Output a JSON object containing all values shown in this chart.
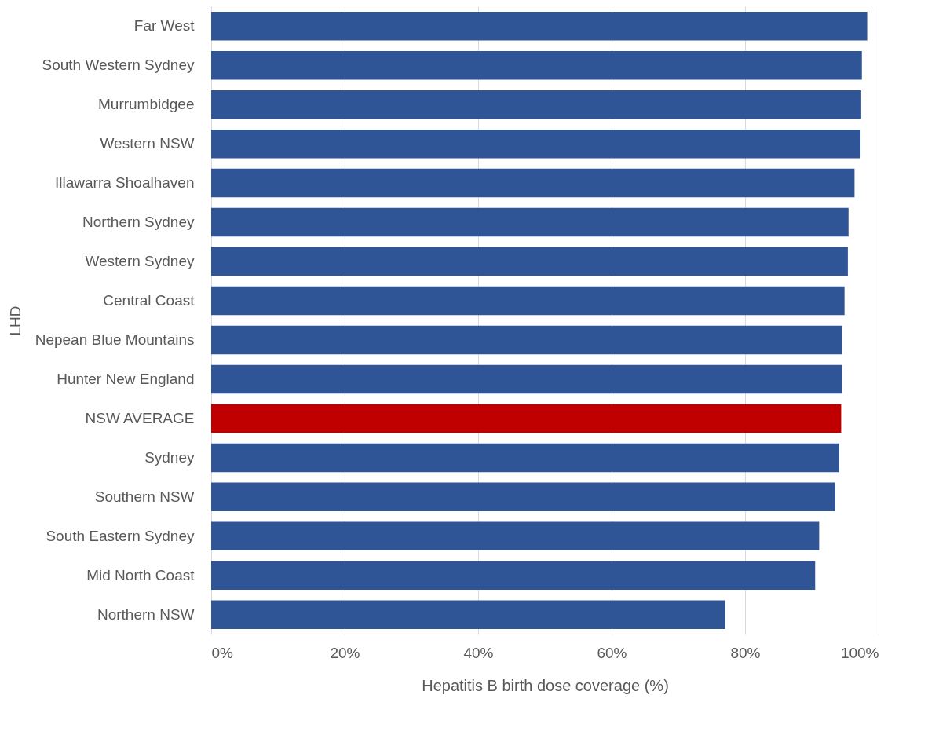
{
  "chart_data": {
    "type": "bar",
    "orientation": "horizontal",
    "xlabel": "Hepatitis B birth dose coverage (%)",
    "ylabel": "LHD",
    "categories": [
      "Far West",
      "South Western Sydney",
      "Murrumbidgee",
      "Western NSW",
      "Illawarra Shoalhaven",
      "Northern Sydney",
      "Western Sydney",
      "Central Coast",
      "Nepean Blue Mountains",
      "Hunter New England",
      "NSW AVERAGE",
      "Sydney",
      "Southern NSW",
      "South Eastern Sydney",
      "Mid North Coast",
      "Northern NSW"
    ],
    "values": [
      98.3,
      97.5,
      97.4,
      97.3,
      96.4,
      95.5,
      95.4,
      94.9,
      94.5,
      94.5,
      94.4,
      94.1,
      93.5,
      91.1,
      90.5,
      77.0
    ],
    "colors": [
      "#2f5597",
      "#2f5597",
      "#2f5597",
      "#2f5597",
      "#2f5597",
      "#2f5597",
      "#2f5597",
      "#2f5597",
      "#2f5597",
      "#2f5597",
      "#c00000",
      "#2f5597",
      "#2f5597",
      "#2f5597",
      "#2f5597",
      "#2f5597"
    ],
    "xlim": [
      0,
      100
    ],
    "xticks": [
      {
        "value": 0,
        "label": "0%"
      },
      {
        "value": 20,
        "label": "20%"
      },
      {
        "value": 40,
        "label": "40%"
      },
      {
        "value": 60,
        "label": "60%"
      },
      {
        "value": 80,
        "label": "80%"
      },
      {
        "value": 100,
        "label": "100%"
      }
    ],
    "grid": "x"
  }
}
